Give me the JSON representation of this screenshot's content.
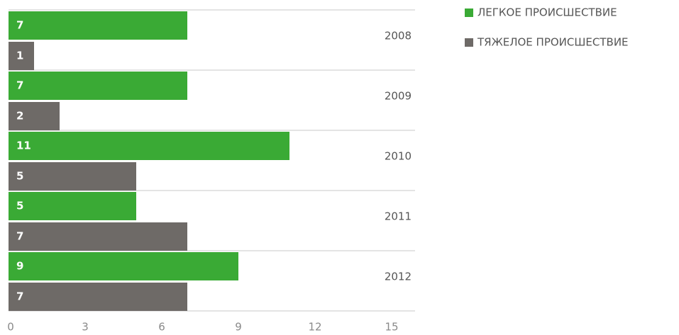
{
  "chart_data": {
    "type": "bar",
    "orientation": "horizontal",
    "categories": [
      "2008",
      "2009",
      "2010",
      "2011",
      "2012"
    ],
    "series": [
      {
        "name": "ЛЕГКОЕ ПРОИСШЕСТВИЕ",
        "color": "#3aaa35",
        "values": [
          7,
          7,
          11,
          5,
          9
        ]
      },
      {
        "name": "ТЯЖЕЛОЕ ПРОИСШЕСТВИЕ",
        "color": "#6e6a67",
        "values": [
          1,
          2,
          5,
          7,
          7
        ]
      }
    ],
    "xlim": [
      0,
      15
    ],
    "xticks": [
      0,
      3,
      6,
      9,
      12,
      15
    ],
    "legend": "right"
  }
}
